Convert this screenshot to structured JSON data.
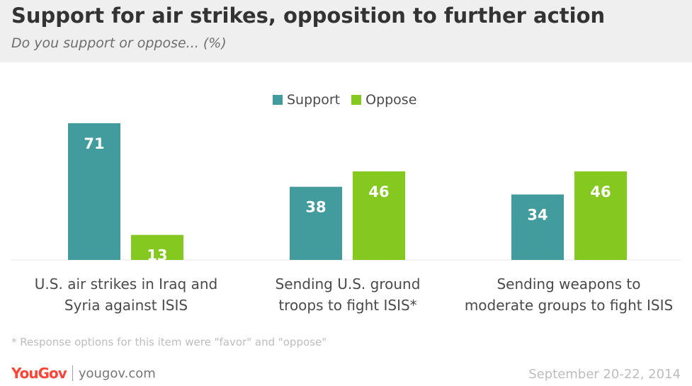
{
  "header": {
    "title": "Support for air strikes, opposition to further action",
    "subtitle": "Do you support or oppose... (%)"
  },
  "legend": [
    {
      "label": "Support",
      "color": "#429b9c"
    },
    {
      "label": "Oppose",
      "color": "#84c820"
    }
  ],
  "chart_data": {
    "type": "bar",
    "categories": [
      "U.S. air strikes in Iraq and\nSyria against ISIS",
      "Sending U.S. ground\ntroops to fight ISIS*",
      "Sending weapons to\nmoderate groups to fight ISIS"
    ],
    "series": [
      {
        "name": "Support",
        "values": [
          71,
          38,
          34
        ],
        "color": "#429b9c"
      },
      {
        "name": "Oppose",
        "values": [
          13,
          46,
          46
        ],
        "color": "#84c820"
      }
    ],
    "title": "Support for air strikes, opposition to further action",
    "subtitle": "Do you support or oppose... (%)",
    "ylim": [
      0,
      71
    ],
    "grid": false,
    "legend_position": "top-center"
  },
  "footer": {
    "footnote": "* Response options for this item were \"favor\" and \"oppose\"",
    "logo": "YouGov",
    "site": "yougov.com",
    "date": "September 20-22, 2014"
  }
}
